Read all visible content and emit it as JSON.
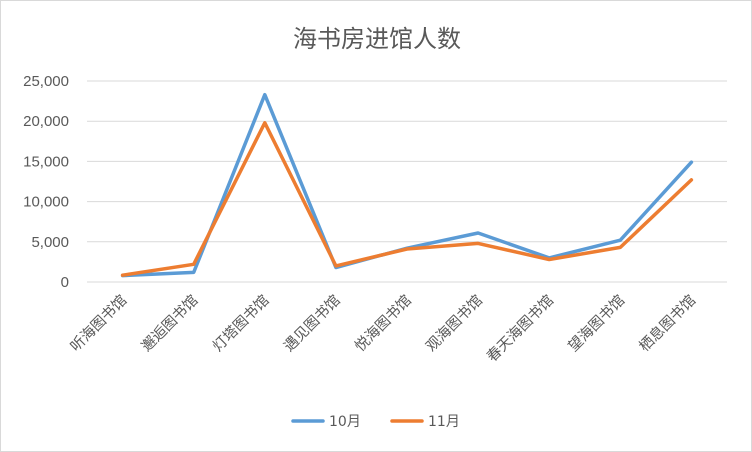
{
  "chart_data": {
    "type": "line",
    "title": "海书房进馆人数",
    "categories": [
      "听海图书馆",
      "邂逅图书馆",
      "灯塔图书馆",
      "遇见图书馆",
      "悦海图书馆",
      "观海图书馆",
      "春天海图书馆",
      "望海图书馆",
      "栖息图书馆"
    ],
    "series": [
      {
        "name": "10月",
        "color": "#5b9bd5",
        "values": [
          800,
          1200,
          23300,
          1800,
          4200,
          6100,
          3000,
          5200,
          14900
        ]
      },
      {
        "name": "11月",
        "color": "#ed7d31",
        "values": [
          850,
          2200,
          19800,
          2000,
          4100,
          4800,
          2800,
          4300,
          12700
        ]
      }
    ],
    "ylim": [
      0,
      25000
    ],
    "yticks": [
      "0",
      "5,000",
      "10,000",
      "15,000",
      "20,000",
      "25,000"
    ],
    "ytick_values": [
      0,
      5000,
      10000,
      15000,
      20000,
      25000
    ],
    "grid": true,
    "legend": "bottom"
  }
}
